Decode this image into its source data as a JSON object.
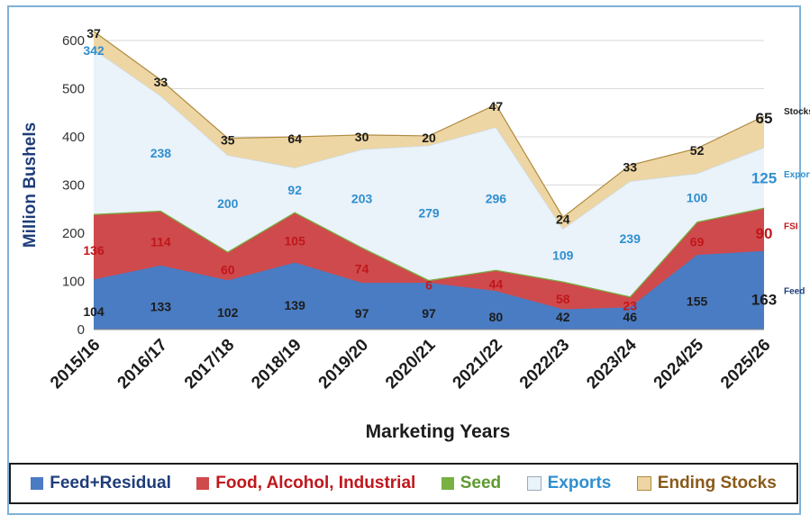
{
  "chart_data": {
    "type": "area",
    "stacked": true,
    "xlabel": "Marketing Years",
    "ylabel": "Million Bushels",
    "ylim": [
      0,
      600
    ],
    "yticks": [
      0,
      100,
      200,
      300,
      400,
      500,
      600
    ],
    "grid": true,
    "legend_placement": "bottom",
    "categories": [
      "2015/16",
      "2016/17",
      "2017/18",
      "2018/19",
      "2019/20",
      "2020/21",
      "2021/22",
      "2022/23",
      "2023/24",
      "2024/25",
      "2025/26"
    ],
    "series": [
      {
        "name": "Feed+Residual",
        "key": "feed",
        "color": "#4a7cc3",
        "label_color": "#1f3d7a",
        "values": [
          104,
          133,
          102,
          139,
          97,
          97,
          80,
          42,
          46,
          155,
          163
        ]
      },
      {
        "name": "Food, Alcohol, Industrial",
        "key": "fsi",
        "color": "#cf4a4c",
        "label_color": "#c0171c",
        "values": [
          136,
          114,
          60,
          105,
          74,
          6,
          44,
          58,
          23,
          69,
          90
        ]
      },
      {
        "name": "Seed",
        "key": "seed",
        "color": "#79b042",
        "label_color": "#5e9a2e",
        "values": [
          null,
          null,
          null,
          null,
          null,
          null,
          null,
          null,
          null,
          null,
          null
        ]
      },
      {
        "name": "Exports",
        "key": "exports",
        "color": "#eaf2fa",
        "label_color": "#2f8fcf",
        "values": [
          342,
          238,
          200,
          92,
          203,
          279,
          296,
          109,
          239,
          100,
          125
        ]
      },
      {
        "name": "Ending Stocks",
        "key": "stocks",
        "color": "#edd6a3",
        "label_color": "#1c1c1c",
        "values": [
          37,
          33,
          35,
          64,
          30,
          20,
          47,
          24,
          33,
          52,
          65
        ]
      }
    ],
    "end_tags": {
      "feed": "Feed",
      "fsi": "FSI",
      "exports": "Exports",
      "stocks": "Stocks"
    },
    "legend_colors": {
      "feed": "#1f3d7a",
      "fsi": "#c0171c",
      "seed": "#5e9a2e",
      "exports": "#2f8fcf",
      "stocks": "#8a5a1a"
    }
  }
}
